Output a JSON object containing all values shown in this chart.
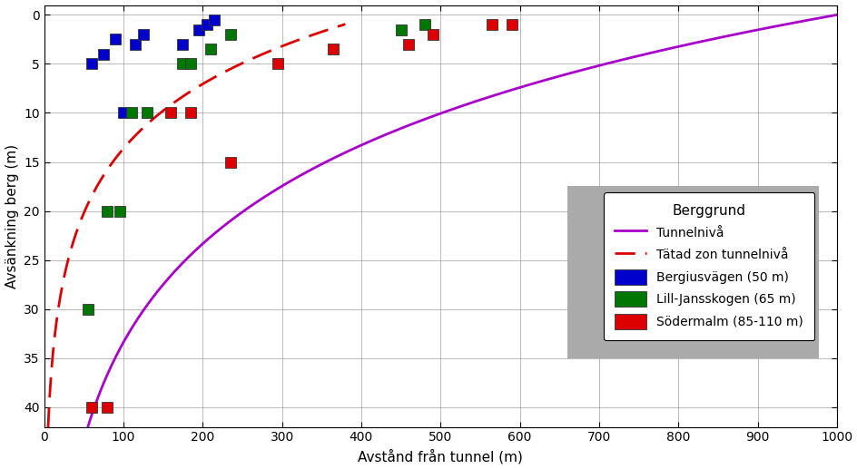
{
  "xlabel": "Avstånd från tunnel (m)",
  "ylabel": "Avsänkning berg (m)",
  "xlim": [
    0,
    1000
  ],
  "ylim": [
    42,
    -1
  ],
  "xticks": [
    0,
    100,
    200,
    300,
    400,
    500,
    600,
    700,
    800,
    900,
    1000
  ],
  "yticks": [
    0,
    5,
    10,
    15,
    20,
    25,
    30,
    35,
    40
  ],
  "blue_points": [
    [
      60,
      5.0
    ],
    [
      75,
      4.0
    ],
    [
      90,
      2.5
    ],
    [
      100,
      10.0
    ],
    [
      115,
      3.0
    ],
    [
      125,
      2.0
    ],
    [
      175,
      3.0
    ],
    [
      195,
      1.5
    ],
    [
      205,
      1.0
    ],
    [
      215,
      0.5
    ]
  ],
  "green_points": [
    [
      55,
      30.0
    ],
    [
      80,
      20.0
    ],
    [
      95,
      20.0
    ],
    [
      110,
      10.0
    ],
    [
      130,
      10.0
    ],
    [
      175,
      5.0
    ],
    [
      185,
      5.0
    ],
    [
      210,
      3.5
    ],
    [
      235,
      2.0
    ],
    [
      450,
      1.5
    ],
    [
      480,
      1.0
    ]
  ],
  "red_points": [
    [
      60,
      40.0
    ],
    [
      80,
      40.0
    ],
    [
      160,
      10.0
    ],
    [
      185,
      10.0
    ],
    [
      235,
      15.0
    ],
    [
      295,
      5.0
    ],
    [
      365,
      3.5
    ],
    [
      460,
      3.0
    ],
    [
      490,
      2.0
    ],
    [
      565,
      1.0
    ],
    [
      590,
      1.0
    ]
  ],
  "tunnel_curve_A": 14.5,
  "tunnel_curve_x0": 1000,
  "tatad_curve_A": 9.5,
  "tatad_curve_x0": 420,
  "tatad_xmax": 380,
  "tunnel_line_color": "#aa00cc",
  "dashed_line_color": "#dd0000",
  "blue_color": "#0000cc",
  "green_color": "#007700",
  "red_color": "#dd0000",
  "legend_title": "Berggrund",
  "legend_line1": "Tunnelnivå",
  "legend_line2": "Tätad zon tunnelnivå",
  "legend_label1": "Bergiusvägen (50 m)",
  "legend_label2": "Lill-Jansskogen (65 m)",
  "legend_label3": "Södermalm (85-110 m)",
  "figsize": [
    9.45,
    5.17
  ],
  "dpi": 100
}
